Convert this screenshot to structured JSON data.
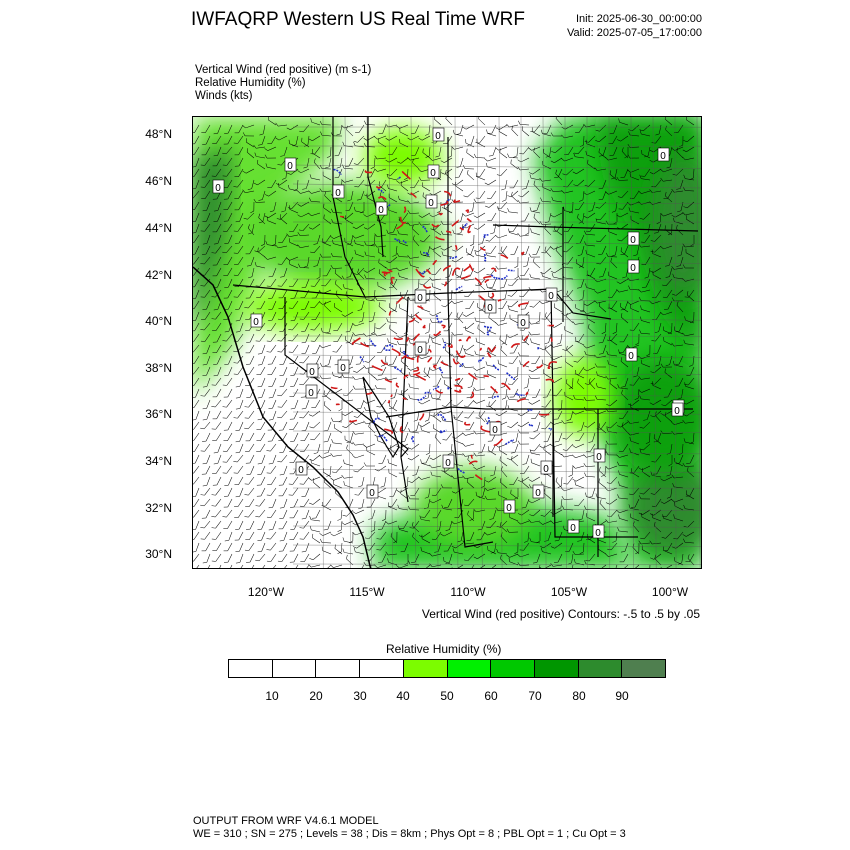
{
  "header": {
    "title": "IWFAQRP Western US Real Time WRF",
    "init": "Init: 2025-06-30_00:00:00",
    "valid": "Valid: 2025-07-05_17:00:00"
  },
  "fields": [
    "Vertical Wind (red positive)   (m s-1)",
    "Relative Humidity   (%)",
    "Winds   (kts)"
  ],
  "map": {
    "lat_labels": [
      "48°N",
      "46°N",
      "44°N",
      "42°N",
      "40°N",
      "38°N",
      "36°N",
      "34°N",
      "32°N",
      "30°N"
    ],
    "lon_labels": [
      "120°W",
      "115°W",
      "110°W",
      "105°W",
      "100°W"
    ],
    "contour_label": "0",
    "colors": {
      "positive_vertical_wind": "#d01818",
      "negative_vertical_wind": "#2030c8",
      "rh_wet": "#2e9a2e"
    }
  },
  "contour_note": "Vertical Wind (red positive) Contours: -.5 to .5 by .05",
  "legend": {
    "title": "Relative Humidity   (%)",
    "labels": [
      "10",
      "20",
      "30",
      "40",
      "50",
      "60",
      "70",
      "80",
      "90"
    ],
    "colors": [
      "#ffffff",
      "#ffffff",
      "#ffffff",
      "#ffffff",
      "#7cfc00",
      "#00f000",
      "#00c800",
      "#009600",
      "#2d8b2d",
      "#4f7f4f"
    ]
  },
  "footer": {
    "line1": "OUTPUT FROM WRF V4.6.1 MODEL",
    "line2": "WE = 310 ; SN = 275 ; Levels = 38 ; Dis = 8km ; Phys Opt = 8 ; PBL Opt = 1 ; Cu Opt = 3"
  }
}
